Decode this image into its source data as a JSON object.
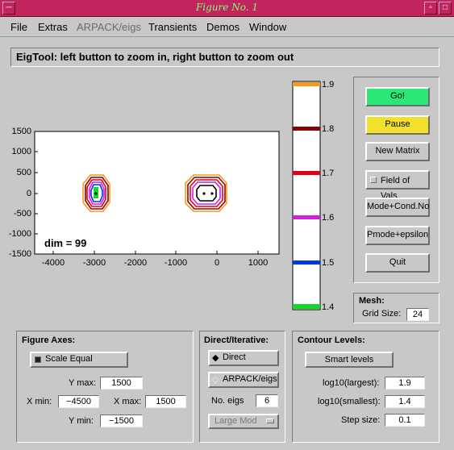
{
  "window": {
    "title": "Figure No. 1"
  },
  "menu": {
    "items": [
      "File",
      "Extras",
      "ARPACK/eigs",
      "Transients",
      "Demos",
      "Window"
    ]
  },
  "header": {
    "text": "EigTool: left button to zoom in, right button to zoom out"
  },
  "plot": {
    "y_ticks": [
      "1500",
      "1000",
      "500",
      "0",
      "-500",
      "-1000",
      "-1500"
    ],
    "x_ticks": [
      "-4000",
      "-3000",
      "-2000",
      "-1000",
      "0",
      "1000"
    ],
    "dim_label": "dim = 99"
  },
  "colorbar": {
    "ticks": [
      "1.9",
      "1.8",
      "1.7",
      "1.6",
      "1.5",
      "1.4"
    ],
    "colors": [
      "#f39b1c",
      "#8b0000",
      "#e0001a",
      "#d21fe0",
      "#0037e6",
      "#12d828"
    ]
  },
  "right_panel": {
    "go": "Go!",
    "pause": "Pause",
    "new_matrix": "New Matrix",
    "field_of_vals": "Field of Vals.",
    "mode_cond": "Mode+Cond.No",
    "pmode_eps": "Pmode+epsilon",
    "quit": "Quit"
  },
  "mesh": {
    "title": "Mesh:",
    "grid_label": "Grid Size:",
    "grid_value": "24"
  },
  "figure_axes": {
    "title": "Figure Axes:",
    "scale_equal": "Scale Equal",
    "ymax_label": "Y max:",
    "ymax": "1500",
    "xmin_label": "X min:",
    "xmin": "−4500",
    "xmax_label": "X max:",
    "xmax": "1500",
    "ymin_label": "Y min:",
    "ymin": "−1500"
  },
  "direct": {
    "title": "Direct/Iterative:",
    "direct": "Direct",
    "arpack": "ARPACK/eigs",
    "neigs_label": "No. eigs",
    "neigs": "6",
    "largemod": "Large Mod"
  },
  "contour": {
    "title": "Contour Levels:",
    "smart": "Smart  levels",
    "largest_label": "log10(largest):",
    "largest": "1.9",
    "smallest_label": "log10(smallest):",
    "smallest": "1.4",
    "step_label": "Step size:",
    "step": "0.1"
  }
}
